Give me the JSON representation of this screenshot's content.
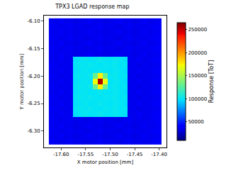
{
  "chart_data": {
    "type": "heatmap",
    "title": "TPX3 LGAD response map",
    "x_label": "X motor position [mm]",
    "y_label": "Y motor position [mm]",
    "color": "jet",
    "x": [
      -17.62,
      -17.61,
      -17.6,
      -17.59,
      -17.58,
      -17.57,
      -17.56,
      -17.55,
      -17.54,
      -17.53,
      -17.52,
      -17.51,
      -17.5,
      -17.49,
      -17.48,
      -17.47,
      -17.46,
      -17.45,
      -17.44,
      -17.43,
      -17.42,
      -17.41,
      -17.4
    ],
    "y": [
      -6.32,
      -6.31,
      -6.3,
      -6.29,
      -6.28,
      -6.27,
      -6.26,
      -6.25,
      -6.24,
      -6.23,
      -6.22,
      -6.21,
      -6.2,
      -6.19,
      -6.18,
      -6.17,
      -6.16,
      -6.15,
      -6.14,
      -6.13,
      -6.12,
      -6.11,
      -6.1
    ],
    "z": [
      [
        36000,
        35000,
        34000,
        35000,
        36000,
        34000,
        35000,
        33000,
        34000,
        35000,
        36000,
        34000,
        35000,
        34000,
        33000,
        35000,
        36000,
        34000,
        35000,
        34000,
        35000,
        36000,
        37000
      ],
      [
        35000,
        34000,
        36000,
        34000,
        35000,
        33000,
        34000,
        35000,
        36000,
        34000,
        35000,
        33000,
        34000,
        35000,
        36000,
        34000,
        35000,
        33000,
        34000,
        36000,
        34000,
        35000,
        36000
      ],
      [
        36000,
        35000,
        34000,
        35000,
        36000,
        34000,
        35000,
        33000,
        34000,
        35000,
        36000,
        34000,
        35000,
        34000,
        33000,
        35000,
        36000,
        34000,
        35000,
        34000,
        35000,
        36000,
        37000
      ],
      [
        35000,
        34000,
        36000,
        34000,
        35000,
        33000,
        34000,
        35000,
        36000,
        34000,
        35000,
        33000,
        34000,
        35000,
        36000,
        34000,
        35000,
        33000,
        34000,
        36000,
        34000,
        35000,
        36000
      ],
      [
        36000,
        35000,
        34000,
        35000,
        36000,
        34000,
        35000,
        33000,
        34000,
        35000,
        36000,
        34000,
        35000,
        34000,
        33000,
        35000,
        36000,
        34000,
        35000,
        34000,
        35000,
        36000,
        37000
      ],
      [
        35000,
        34000,
        36000,
        34000,
        35000,
        98000,
        100000,
        101000,
        99000,
        100000,
        102000,
        100000,
        99000,
        101000,
        100000,
        98000,
        35000,
        34000,
        36000,
        34000,
        35000,
        36000,
        37000
      ],
      [
        36000,
        35000,
        34000,
        35000,
        34000,
        99000,
        101000,
        100000,
        102000,
        100000,
        99000,
        101000,
        100000,
        102000,
        99000,
        100000,
        34000,
        35000,
        33000,
        35000,
        34000,
        35000,
        36000
      ],
      [
        35000,
        34000,
        36000,
        34000,
        35000,
        98000,
        100000,
        101000,
        99000,
        100000,
        102000,
        100000,
        99000,
        101000,
        100000,
        98000,
        35000,
        34000,
        36000,
        34000,
        35000,
        36000,
        37000
      ],
      [
        36000,
        35000,
        34000,
        35000,
        34000,
        99000,
        101000,
        100000,
        102000,
        100000,
        99000,
        101000,
        100000,
        102000,
        99000,
        100000,
        34000,
        35000,
        33000,
        35000,
        34000,
        35000,
        36000
      ],
      [
        35000,
        34000,
        36000,
        34000,
        35000,
        98000,
        100000,
        101000,
        99000,
        100000,
        102000,
        100000,
        99000,
        101000,
        100000,
        98000,
        35000,
        34000,
        36000,
        34000,
        35000,
        36000,
        37000
      ],
      [
        36000,
        35000,
        34000,
        35000,
        34000,
        99000,
        101000,
        100000,
        102000,
        130000,
        175000,
        130000,
        100000,
        102000,
        99000,
        100000,
        34000,
        35000,
        33000,
        35000,
        34000,
        35000,
        36000
      ],
      [
        35000,
        34000,
        36000,
        34000,
        35000,
        98000,
        100000,
        101000,
        99000,
        170000,
        255000,
        170000,
        99000,
        101000,
        100000,
        98000,
        35000,
        34000,
        36000,
        34000,
        35000,
        36000,
        37000
      ],
      [
        36000,
        35000,
        34000,
        35000,
        34000,
        99000,
        101000,
        100000,
        102000,
        130000,
        175000,
        130000,
        100000,
        102000,
        99000,
        100000,
        34000,
        35000,
        33000,
        35000,
        34000,
        35000,
        36000
      ],
      [
        35000,
        34000,
        36000,
        34000,
        35000,
        98000,
        100000,
        101000,
        99000,
        100000,
        102000,
        100000,
        99000,
        101000,
        100000,
        98000,
        35000,
        34000,
        36000,
        34000,
        35000,
        36000,
        37000
      ],
      [
        36000,
        35000,
        34000,
        35000,
        34000,
        99000,
        101000,
        100000,
        102000,
        100000,
        99000,
        101000,
        100000,
        102000,
        99000,
        100000,
        34000,
        35000,
        33000,
        35000,
        34000,
        35000,
        36000
      ],
      [
        35000,
        34000,
        36000,
        34000,
        35000,
        98000,
        100000,
        101000,
        99000,
        100000,
        102000,
        100000,
        99000,
        101000,
        100000,
        98000,
        35000,
        34000,
        36000,
        34000,
        35000,
        36000,
        37000
      ],
      [
        35000,
        34000,
        36000,
        34000,
        35000,
        33000,
        34000,
        35000,
        36000,
        34000,
        35000,
        33000,
        34000,
        35000,
        36000,
        34000,
        35000,
        33000,
        34000,
        36000,
        34000,
        35000,
        36000
      ],
      [
        36000,
        35000,
        34000,
        35000,
        36000,
        34000,
        35000,
        33000,
        34000,
        35000,
        36000,
        34000,
        35000,
        34000,
        33000,
        35000,
        36000,
        34000,
        35000,
        34000,
        35000,
        36000,
        37000
      ],
      [
        35000,
        34000,
        36000,
        34000,
        35000,
        33000,
        34000,
        35000,
        36000,
        34000,
        35000,
        33000,
        34000,
        35000,
        36000,
        34000,
        35000,
        33000,
        34000,
        36000,
        34000,
        35000,
        36000
      ],
      [
        36000,
        35000,
        34000,
        35000,
        36000,
        34000,
        35000,
        33000,
        34000,
        35000,
        36000,
        34000,
        35000,
        34000,
        33000,
        35000,
        36000,
        34000,
        35000,
        34000,
        35000,
        36000,
        37000
      ],
      [
        35000,
        34000,
        36000,
        34000,
        35000,
        33000,
        34000,
        35000,
        36000,
        34000,
        35000,
        33000,
        34000,
        35000,
        36000,
        34000,
        35000,
        33000,
        34000,
        36000,
        34000,
        35000,
        36000
      ],
      [
        36000,
        35000,
        34000,
        35000,
        36000,
        34000,
        35000,
        33000,
        34000,
        35000,
        36000,
        34000,
        35000,
        34000,
        33000,
        35000,
        36000,
        34000,
        35000,
        34000,
        35000,
        36000,
        37000
      ],
      [
        35000,
        34000,
        36000,
        34000,
        35000,
        33000,
        34000,
        35000,
        36000,
        34000,
        35000,
        33000,
        34000,
        35000,
        36000,
        34000,
        35000,
        33000,
        34000,
        36000,
        34000,
        35000,
        36000
      ]
    ],
    "xlim": [
      -17.635,
      -17.385
    ],
    "xticks": [
      {
        "value": -17.6,
        "label": "-17.60"
      },
      {
        "value": -17.55,
        "label": "-17.55"
      },
      {
        "value": -17.5,
        "label": "-17.50"
      },
      {
        "value": -17.45,
        "label": "-17.45"
      },
      {
        "value": -17.4,
        "label": "-17.40"
      }
    ],
    "ylim": [
      -6.33,
      -6.09
    ],
    "yticks": [
      {
        "value": -6.3,
        "label": "-6.30"
      },
      {
        "value": -6.25,
        "label": "-6.25"
      },
      {
        "value": -6.2,
        "label": "-6.20"
      },
      {
        "value": -6.15,
        "label": "-6.15"
      },
      {
        "value": -6.1,
        "label": "-6.10"
      }
    ],
    "colorbar": {
      "title": "Response [ToT]",
      "range": [
        10000,
        265000
      ],
      "ticks": [
        50000,
        100000,
        150000,
        200000,
        250000
      ]
    }
  }
}
